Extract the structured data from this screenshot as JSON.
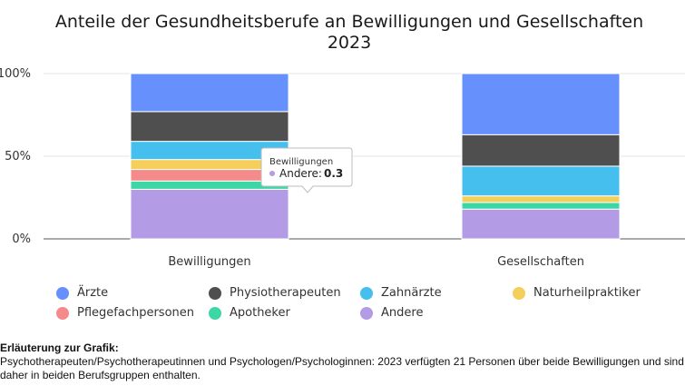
{
  "chart_data": {
    "type": "bar",
    "stacked": true,
    "title": "Anteile der Gesundheitsberufe an Bewilligungen und Gesellschaften 2023",
    "categories": [
      "Bewilligungen",
      "Gesellschaften"
    ],
    "y_ticks": [
      "0%",
      "50%",
      "100%"
    ],
    "ylim": [
      0,
      1
    ],
    "series": [
      {
        "name": "Andere",
        "color": "#b39be6",
        "values": [
          0.3,
          0.18
        ]
      },
      {
        "name": "Apotheker",
        "color": "#3dd6a5",
        "values": [
          0.05,
          0.04
        ]
      },
      {
        "name": "Pflegefachpersonen",
        "color": "#f58a8a",
        "values": [
          0.07,
          0.0
        ]
      },
      {
        "name": "Naturheilpraktiker",
        "color": "#f5cf5b",
        "values": [
          0.06,
          0.04
        ]
      },
      {
        "name": "Zahnärzte",
        "color": "#45c0ee",
        "values": [
          0.11,
          0.18
        ]
      },
      {
        "name": "Physiotherapeuten",
        "color": "#4f4f4f",
        "values": [
          0.18,
          0.19
        ]
      },
      {
        "name": "Ärzte",
        "color": "#6690fb",
        "values": [
          0.23,
          0.37
        ]
      }
    ],
    "legend_order": [
      "Ärzte",
      "Physiotherapeuten",
      "Zahnärzte",
      "Naturheilpraktiker",
      "Pflegefachpersonen",
      "Apotheker",
      "Andere"
    ],
    "legend_position": "bottom",
    "tooltip": {
      "title": "Bewilligungen",
      "label": "Andere:",
      "value": "0.3"
    }
  },
  "note": {
    "title": "Erläuterung zur Grafik:",
    "text": "Psychotherapeuten/Psychotherapeutinnen und Psychologen/Psychologinnen: 2023 verfügten 21 Personen über beide Bewilligungen und sind daher in beiden Berufsgruppen enthalten."
  }
}
